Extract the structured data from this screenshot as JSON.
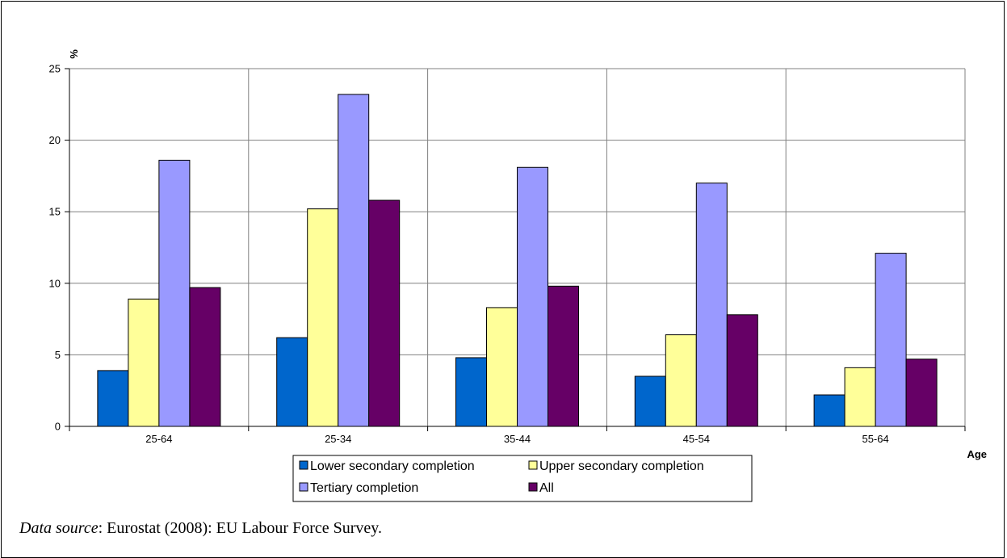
{
  "chart_data": {
    "type": "bar",
    "ylabel": "%",
    "xlabel": "Age",
    "ylim": [
      0,
      25
    ],
    "yticks": [
      0,
      5,
      10,
      15,
      20,
      25
    ],
    "grid": true,
    "legend_position": "bottom",
    "categories": [
      "25-64",
      "25-34",
      "35-44",
      "45-54",
      "55-64"
    ],
    "series": [
      {
        "name": "Lower secondary completion",
        "color": "#0066CC",
        "values": [
          3.9,
          6.2,
          4.8,
          3.5,
          2.2
        ]
      },
      {
        "name": "Upper secondary completion",
        "color": "#FFFF99",
        "values": [
          8.9,
          15.2,
          8.3,
          6.4,
          4.1
        ]
      },
      {
        "name": "Tertiary completion",
        "color": "#9999FF",
        "values": [
          18.6,
          23.2,
          18.1,
          17.0,
          12.1
        ]
      },
      {
        "name": "All",
        "color": "#660066",
        "values": [
          9.7,
          15.8,
          9.8,
          7.8,
          4.7
        ]
      }
    ]
  },
  "source": {
    "label": "Data source",
    "text": ": Eurostat (2008): EU Labour Force Survey."
  }
}
